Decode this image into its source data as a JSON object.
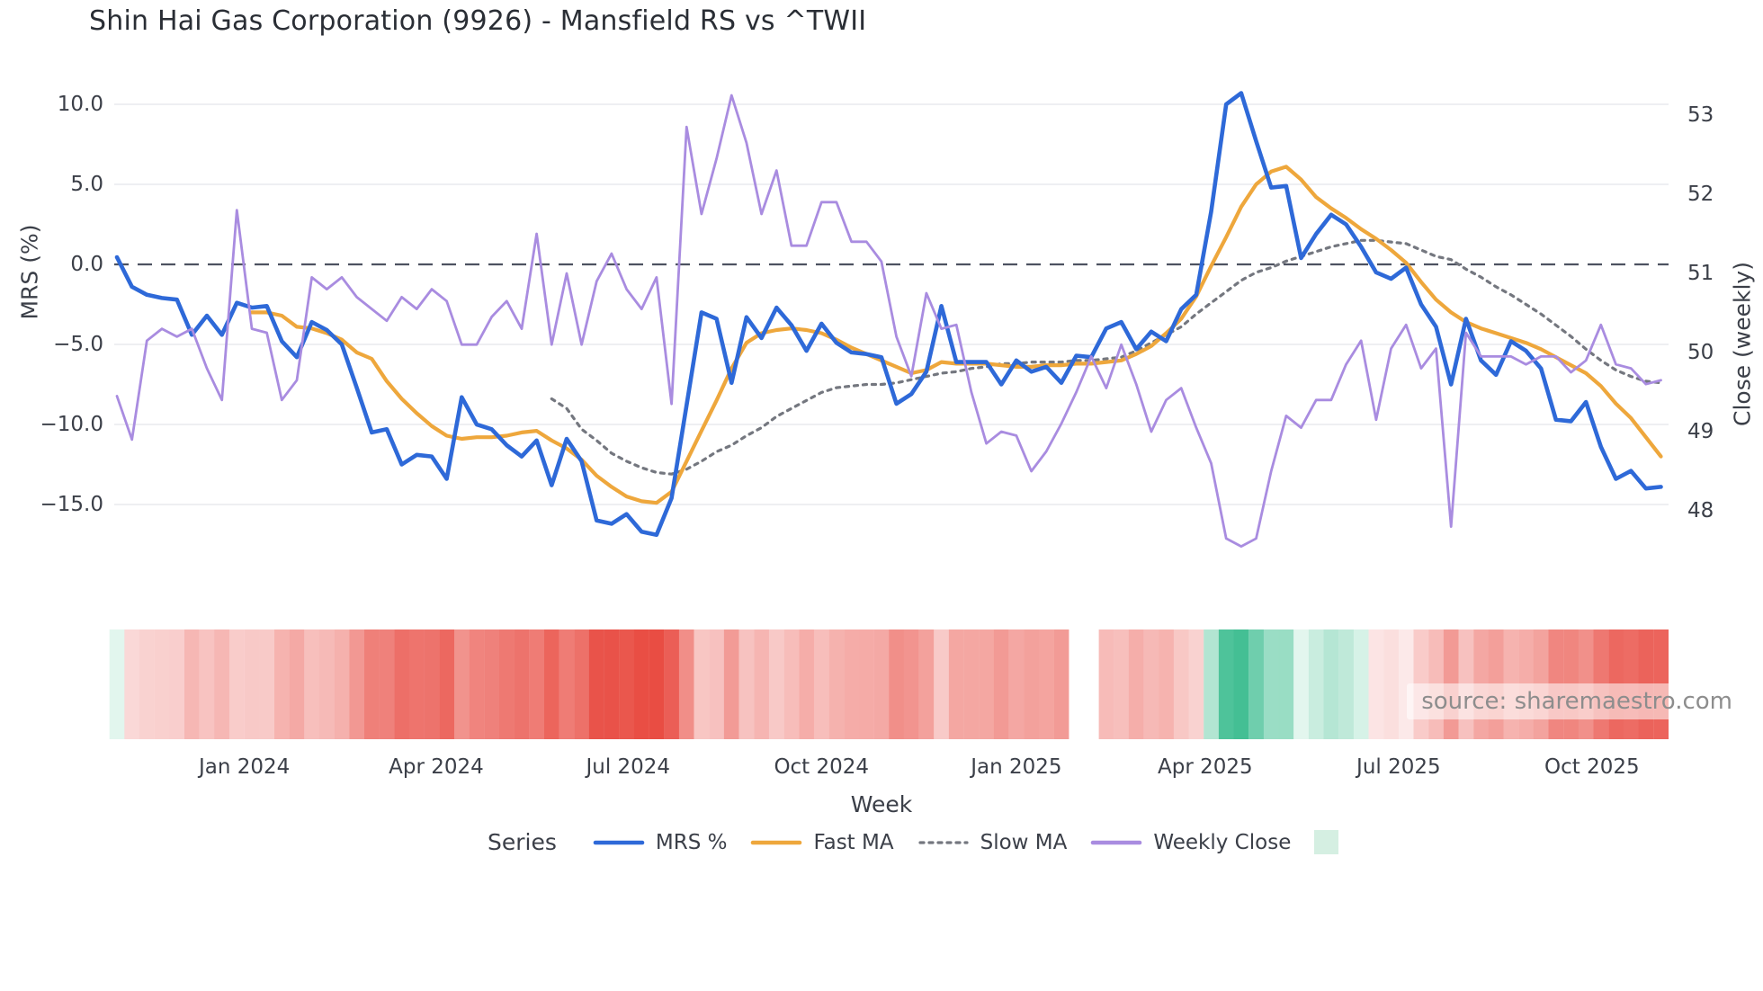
{
  "title": "Shin Hai Gas Corporation (9926) - Mansfield RS vs ^TWII",
  "source_note": "source: sharemaestro.com",
  "legend": {
    "title": "Series",
    "entries": [
      {
        "label": "MRS %",
        "color": "#2e69d8",
        "style": "solid"
      },
      {
        "label": "Fast MA",
        "color": "#eea73c",
        "style": "solid"
      },
      {
        "label": "Slow MA",
        "color": "#74777f",
        "style": "dotted"
      },
      {
        "label": "Weekly Close",
        "color": "#a98ce0",
        "style": "solid"
      },
      {
        "label": "",
        "color": "#d5efe2",
        "style": "swatch"
      }
    ]
  },
  "chart_data": {
    "type": "line",
    "title": "Shin Hai Gas Corporation (9926) - Mansfield RS vs ^TWII",
    "xlabel": "Week",
    "ylabel_left": "MRS (%)",
    "ylabel_right": "Close (weekly)",
    "x_unit": "weekly points, ~2 years",
    "n_points": 104,
    "grid": true,
    "zero_line_left_axis": true,
    "axes": {
      "left_ticks": [
        {
          "v": 10,
          "label": "10.0"
        },
        {
          "v": 5,
          "label": "5.0"
        },
        {
          "v": 0,
          "label": "0.0"
        },
        {
          "v": -5,
          "label": "−5.0"
        },
        {
          "v": -10,
          "label": "−10.0"
        },
        {
          "v": -15,
          "label": "−15.0"
        }
      ],
      "right_ticks": [
        {
          "v": 53,
          "label": "53"
        },
        {
          "v": 52,
          "label": "52"
        },
        {
          "v": 51,
          "label": "51"
        },
        {
          "v": 50,
          "label": "50"
        },
        {
          "v": 49,
          "label": "49"
        },
        {
          "v": 48,
          "label": "48"
        }
      ],
      "x_ticks": [
        {
          "week": 8.5,
          "label": "Jan 2024"
        },
        {
          "week": 21.3,
          "label": "Apr 2024"
        },
        {
          "week": 34.1,
          "label": "Jul 2024"
        },
        {
          "week": 47.0,
          "label": "Oct 2024"
        },
        {
          "week": 60.0,
          "label": "Jan 2025"
        },
        {
          "week": 72.6,
          "label": "Apr 2025"
        },
        {
          "week": 85.5,
          "label": "Jul 2025"
        },
        {
          "week": 98.4,
          "label": "Oct 2025"
        }
      ]
    },
    "series": [
      {
        "name": "MRS %",
        "axis": "left",
        "color": "#2e69d8",
        "style": "solid",
        "width": 4.6,
        "values": [
          0.45,
          -1.4,
          -1.9,
          -2.1,
          -2.2,
          -4.4,
          -3.2,
          -4.4,
          -2.4,
          -2.7,
          -2.6,
          -4.8,
          -5.8,
          -3.6,
          -4.1,
          -5.0,
          -7.7,
          -10.5,
          -10.3,
          -12.5,
          -11.9,
          -12.0,
          -13.4,
          -8.3,
          -10.0,
          -10.3,
          -11.3,
          -12.0,
          -11.0,
          -13.8,
          -10.9,
          -12.3,
          -16.0,
          -16.2,
          -15.6,
          -16.7,
          -16.9,
          -14.6,
          -8.8,
          -3.0,
          -3.4,
          -7.4,
          -3.3,
          -4.6,
          -2.7,
          -3.8,
          -5.4,
          -3.7,
          -4.9,
          -5.5,
          -5.6,
          -5.8,
          -8.7,
          -8.1,
          -6.7,
          -2.6,
          -6.1,
          -6.1,
          -6.1,
          -7.5,
          -6.0,
          -6.7,
          -6.4,
          -7.4,
          -5.7,
          -5.8,
          -4.0,
          -3.6,
          -5.3,
          -4.2,
          -4.8,
          -2.8,
          -1.9,
          3.3,
          10.0,
          10.7,
          7.7,
          4.8,
          4.9,
          0.4,
          1.9,
          3.1,
          2.5,
          1.1,
          -0.5,
          -0.9,
          -0.2,
          -2.5,
          -3.9,
          -7.5,
          -3.4,
          -6.0,
          -6.9,
          -4.8,
          -5.4,
          -6.5,
          -9.7,
          -9.8,
          -8.6,
          -11.4,
          -13.4,
          -12.9,
          -14.0,
          -13.9
        ]
      },
      {
        "name": "Fast MA",
        "axis": "left",
        "color": "#eea73c",
        "style": "solid",
        "width": 4.2,
        "values": [
          null,
          null,
          null,
          null,
          null,
          null,
          null,
          null,
          null,
          -3.0,
          -3.0,
          -3.2,
          -3.9,
          -4.0,
          -4.3,
          -4.7,
          -5.5,
          -5.9,
          -7.3,
          -8.4,
          -9.3,
          -10.1,
          -10.7,
          -10.9,
          -10.8,
          -10.8,
          -10.7,
          -10.5,
          -10.4,
          -11.0,
          -11.5,
          -12.2,
          -13.2,
          -13.9,
          -14.5,
          -14.8,
          -14.9,
          -14.2,
          -12.3,
          -10.4,
          -8.5,
          -6.5,
          -4.9,
          -4.3,
          -4.1,
          -4.0,
          -4.1,
          -4.3,
          -4.7,
          -5.2,
          -5.6,
          -6.0,
          -6.4,
          -6.8,
          -6.6,
          -6.1,
          -6.2,
          -6.2,
          -6.2,
          -6.3,
          -6.4,
          -6.4,
          -6.3,
          -6.3,
          -6.2,
          -6.2,
          -6.1,
          -6.0,
          -5.6,
          -5.1,
          -4.3,
          -3.4,
          -2.0,
          -0.1,
          1.7,
          3.6,
          5.0,
          5.8,
          6.1,
          5.3,
          4.2,
          3.5,
          2.9,
          2.2,
          1.6,
          0.9,
          0.1,
          -1.1,
          -2.2,
          -3.0,
          -3.6,
          -4.0,
          -4.3,
          -4.6,
          -4.9,
          -5.3,
          -5.8,
          -6.3,
          -6.8,
          -7.6,
          -8.7,
          -9.6,
          -10.8,
          -12.0
        ]
      },
      {
        "name": "Slow MA",
        "axis": "left",
        "color": "#74777f",
        "style": "dotted",
        "width": 3.2,
        "values": [
          null,
          null,
          null,
          null,
          null,
          null,
          null,
          null,
          null,
          null,
          null,
          null,
          null,
          null,
          null,
          null,
          null,
          null,
          null,
          null,
          null,
          null,
          null,
          null,
          null,
          null,
          null,
          null,
          null,
          -8.4,
          -9.0,
          -10.3,
          -11.0,
          -11.8,
          -12.3,
          -12.7,
          -13.0,
          -13.1,
          -12.8,
          -12.3,
          -11.7,
          -11.3,
          -10.7,
          -10.2,
          -9.5,
          -9.0,
          -8.5,
          -8.0,
          -7.7,
          -7.6,
          -7.5,
          -7.5,
          -7.4,
          -7.2,
          -7.0,
          -6.8,
          -6.7,
          -6.5,
          -6.4,
          -6.2,
          -6.2,
          -6.1,
          -6.1,
          -6.1,
          -6.0,
          -6.0,
          -5.9,
          -5.8,
          -5.4,
          -4.9,
          -4.4,
          -3.9,
          -3.1,
          -2.4,
          -1.7,
          -1.0,
          -0.5,
          -0.2,
          0.2,
          0.5,
          0.8,
          1.1,
          1.3,
          1.5,
          1.5,
          1.4,
          1.3,
          0.9,
          0.5,
          0.3,
          -0.3,
          -0.8,
          -1.4,
          -1.9,
          -2.5,
          -3.1,
          -3.8,
          -4.5,
          -5.3,
          -6.0,
          -6.6,
          -7.0,
          -7.3,
          -7.4
        ]
      },
      {
        "name": "Weekly Close",
        "axis": "right",
        "color": "#a98ce0",
        "style": "solid",
        "width": 2.8,
        "values": [
          49.45,
          48.9,
          50.15,
          50.3,
          50.2,
          50.3,
          49.8,
          49.4,
          51.8,
          50.3,
          50.25,
          49.4,
          49.65,
          50.95,
          50.8,
          50.95,
          50.7,
          50.55,
          50.4,
          50.7,
          50.55,
          50.8,
          50.65,
          50.1,
          50.1,
          50.45,
          50.65,
          50.3,
          51.5,
          50.1,
          51.0,
          50.1,
          50.9,
          51.25,
          50.8,
          50.55,
          50.95,
          49.35,
          52.85,
          51.75,
          52.45,
          53.25,
          52.65,
          51.75,
          52.3,
          51.35,
          51.35,
          51.9,
          51.9,
          51.4,
          51.4,
          51.15,
          50.2,
          49.7,
          50.75,
          50.3,
          50.35,
          49.5,
          48.85,
          49.0,
          48.95,
          48.5,
          48.75,
          49.1,
          49.5,
          49.95,
          49.55,
          50.1,
          49.6,
          49.0,
          49.4,
          49.55,
          49.05,
          48.6,
          47.65,
          47.55,
          47.65,
          48.5,
          49.2,
          49.05,
          49.4,
          49.4,
          49.85,
          50.15,
          49.15,
          50.05,
          50.35,
          49.8,
          50.05,
          47.8,
          50.25,
          49.95,
          49.95,
          49.95,
          49.85,
          49.95,
          49.95,
          49.75,
          49.9,
          50.35,
          49.85,
          49.8,
          49.6,
          49.65
        ]
      }
    ],
    "heatmap": {
      "description": "weekly strip under chart, colored by MRS % value (red = negative, green = positive)",
      "values_follow_series": "MRS %",
      "gap_weeks": [
        64,
        65
      ],
      "neg_color": "#e8483e",
      "neg_max": 17.5,
      "pos_color": "#40be92",
      "pos_max": 11,
      "base_neg": "#fdeeee",
      "base_pos": "#ecf9f3"
    },
    "ylim_left": [
      -18.5,
      11.5
    ],
    "ylim_right": [
      47.4,
      53.4
    ],
    "legend_position": "bottom-center",
    "legend_title": "Series",
    "legend_entries": [
      "MRS %",
      "Fast MA",
      "Slow MA",
      "Weekly Close",
      ""
    ]
  },
  "colors": {
    "grid": "#e9eaee",
    "zero_dash": "#4d5260",
    "tick_text": "#3b3f48",
    "title_text": "#2a2e35",
    "source_text": "#8d8d8d"
  }
}
